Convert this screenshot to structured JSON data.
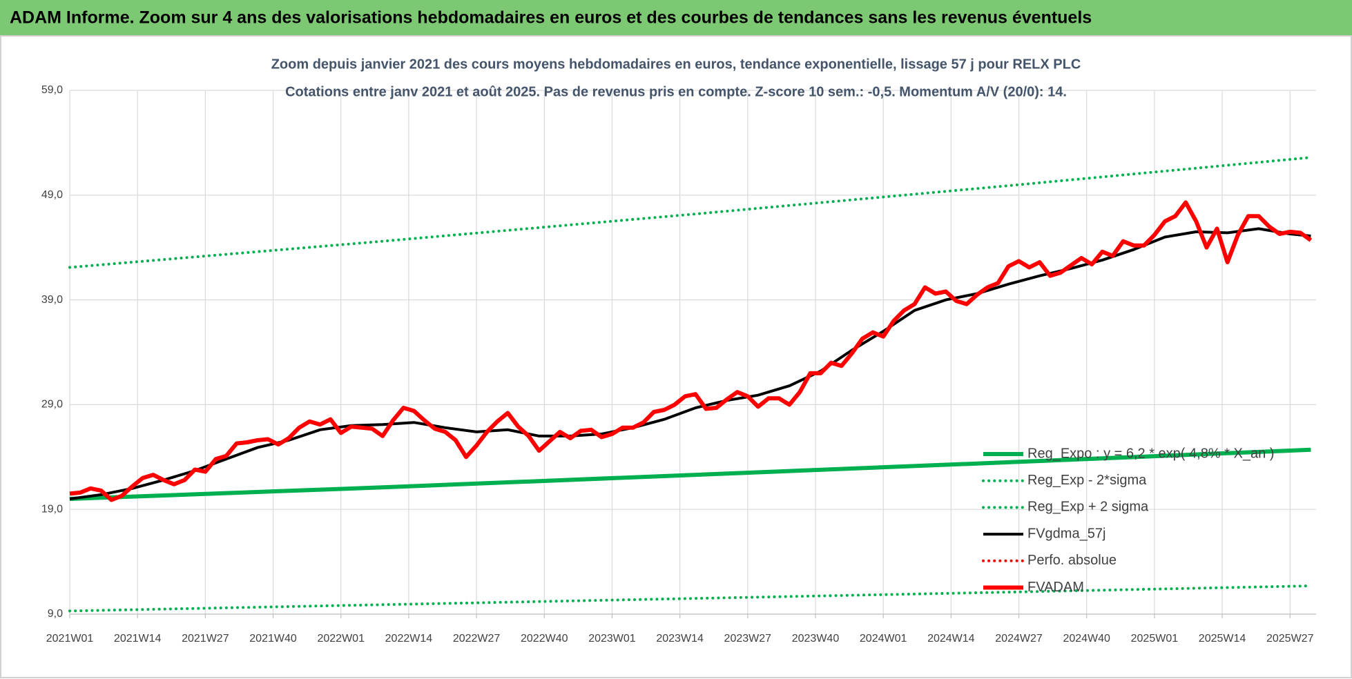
{
  "chart_data": {
    "type": "line",
    "title": "ADAM Informe. Zoom sur 4 ans des valorisations hebdomadaires en euros et des courbes de tendances sans les revenus éventuels",
    "subtitle": [
      "Zoom depuis janvier 2021 des cours moyens hebdomadaires en euros, tendance exponentielle, lissage 57 j pour RELX PLC",
      "Cotations entre janv 2021 et août 2025.  Pas de revenus pris en compte. Z-score 10 sem.: -0,5. Momentum A/V (20/0): 14."
    ],
    "xlim": [
      0,
      239
    ],
    "xticks": [
      {
        "value": 0,
        "label": "2021W01"
      },
      {
        "value": 13,
        "label": "2021W14"
      },
      {
        "value": 26,
        "label": "2021W27"
      },
      {
        "value": 39,
        "label": "2021W40"
      },
      {
        "value": 52,
        "label": "2022W01"
      },
      {
        "value": 65,
        "label": "2022W14"
      },
      {
        "value": 78,
        "label": "2022W27"
      },
      {
        "value": 91,
        "label": "2022W40"
      },
      {
        "value": 104,
        "label": "2023W01"
      },
      {
        "value": 117,
        "label": "2023W14"
      },
      {
        "value": 130,
        "label": "2023W27"
      },
      {
        "value": 143,
        "label": "2023W40"
      },
      {
        "value": 156,
        "label": "2024W01"
      },
      {
        "value": 169,
        "label": "2024W14"
      },
      {
        "value": 182,
        "label": "2024W27"
      },
      {
        "value": 195,
        "label": "2024W40"
      },
      {
        "value": 208,
        "label": "2025W01"
      },
      {
        "value": 221,
        "label": "2025W14"
      },
      {
        "value": 234,
        "label": "2025W27"
      }
    ],
    "ylim": [
      9,
      59
    ],
    "yticks": [
      {
        "value": 9,
        "label": "9,0"
      },
      {
        "value": 19,
        "label": "19,0"
      },
      {
        "value": 29,
        "label": "29,0"
      },
      {
        "value": 39,
        "label": "39,0"
      },
      {
        "value": 49,
        "label": "49,0"
      },
      {
        "value": 59,
        "label": "59,0"
      }
    ],
    "grid": true,
    "legend": "lower right",
    "series": [
      {
        "name": "Reg_Expo : y = 6,2 * exp( 4,8% * X_an )",
        "color": "#00b050",
        "style": "solid",
        "x": [
          0,
          60,
          120,
          180,
          238
        ],
        "values": [
          20.0,
          21.1,
          22.3,
          23.5,
          24.7
        ]
      },
      {
        "name": "Reg_Exp - 2*sigma",
        "color": "#00b050",
        "style": "dotted",
        "x": [
          0,
          60,
          120,
          180,
          238
        ],
        "values": [
          9.3,
          9.9,
          10.5,
          11.1,
          11.7
        ]
      },
      {
        "name": "Reg_Exp + 2 sigma",
        "color": "#00b050",
        "style": "dotted",
        "x": [
          0,
          60,
          120,
          180,
          238
        ],
        "values": [
          42.1,
          44.6,
          47.2,
          49.9,
          52.6
        ]
      },
      {
        "name": "FVgdma_57j",
        "color": "#000000",
        "style": "solid",
        "x": [
          0,
          6,
          12,
          18,
          24,
          30,
          36,
          42,
          48,
          54,
          60,
          66,
          72,
          78,
          84,
          90,
          96,
          102,
          108,
          114,
          120,
          126,
          132,
          138,
          144,
          150,
          156,
          162,
          168,
          174,
          180,
          186,
          192,
          198,
          204,
          210,
          216,
          222,
          228,
          234,
          238
        ],
        "values": [
          20.0,
          20.4,
          21.0,
          21.8,
          22.7,
          23.8,
          24.9,
          25.6,
          26.6,
          27.0,
          27.1,
          27.3,
          26.8,
          26.4,
          26.6,
          26.0,
          26.0,
          26.2,
          26.8,
          27.6,
          28.7,
          29.4,
          29.9,
          30.8,
          32.2,
          34.2,
          36.0,
          38.0,
          39.0,
          39.6,
          40.5,
          41.3,
          42.0,
          42.8,
          43.8,
          45.0,
          45.5,
          45.4,
          45.8,
          45.3,
          45.1
        ]
      },
      {
        "name": "Perfo. absolue",
        "color": "#ff0000",
        "style": "dotted",
        "x": [],
        "values": []
      },
      {
        "name": "FVADAM",
        "color": "#ff0000",
        "style": "thick",
        "x": [
          0,
          2,
          4,
          6,
          8,
          10,
          12,
          14,
          16,
          18,
          20,
          22,
          24,
          26,
          28,
          30,
          32,
          34,
          36,
          38,
          40,
          42,
          44,
          46,
          48,
          50,
          52,
          54,
          56,
          58,
          60,
          62,
          64,
          66,
          68,
          70,
          72,
          74,
          76,
          78,
          80,
          82,
          84,
          86,
          88,
          90,
          92,
          94,
          96,
          98,
          100,
          102,
          104,
          106,
          108,
          110,
          112,
          114,
          116,
          118,
          120,
          122,
          124,
          126,
          128,
          130,
          132,
          134,
          136,
          138,
          140,
          142,
          144,
          146,
          148,
          150,
          152,
          154,
          156,
          158,
          160,
          162,
          164,
          166,
          168,
          170,
          172,
          174,
          176,
          178,
          180,
          182,
          184,
          186,
          188,
          190,
          192,
          194,
          196,
          198,
          200,
          202,
          204,
          206,
          208,
          210,
          212,
          214,
          216,
          218,
          220,
          222,
          224,
          226,
          228,
          230,
          232,
          234,
          236,
          238
        ],
        "values": [
          20.5,
          20.6,
          21.0,
          20.8,
          19.9,
          20.3,
          21.2,
          22.0,
          22.3,
          21.8,
          21.4,
          21.8,
          22.8,
          22.6,
          23.8,
          24.1,
          25.3,
          25.4,
          25.6,
          25.7,
          25.2,
          25.8,
          26.8,
          27.4,
          27.1,
          27.6,
          26.3,
          26.9,
          26.8,
          26.7,
          26.0,
          27.5,
          28.7,
          28.4,
          27.5,
          26.7,
          26.4,
          25.6,
          24.0,
          25.1,
          26.4,
          27.4,
          28.2,
          26.9,
          26.0,
          24.6,
          25.5,
          26.4,
          25.8,
          26.5,
          26.6,
          25.9,
          26.2,
          26.8,
          26.8,
          27.3,
          28.3,
          28.5,
          29.0,
          29.8,
          30.0,
          28.6,
          28.7,
          29.5,
          30.2,
          29.8,
          28.8,
          29.6,
          29.6,
          29.0,
          30.2,
          32.0,
          32.0,
          33.0,
          32.7,
          33.9,
          35.3,
          35.9,
          35.5,
          37.0,
          38.0,
          38.6,
          40.2,
          39.6,
          39.8,
          38.9,
          38.6,
          39.5,
          40.2,
          40.6,
          42.2,
          42.7,
          42.1,
          42.6,
          41.3,
          41.6,
          42.3,
          43.0,
          42.4,
          43.6,
          43.2,
          44.6,
          44.2,
          44.2,
          45.2,
          46.5,
          47.0,
          48.3,
          46.5,
          44.0,
          45.8,
          42.6,
          45.2,
          47.0,
          47.0,
          46.0,
          45.3,
          45.5,
          45.4,
          44.7
        ]
      }
    ]
  }
}
